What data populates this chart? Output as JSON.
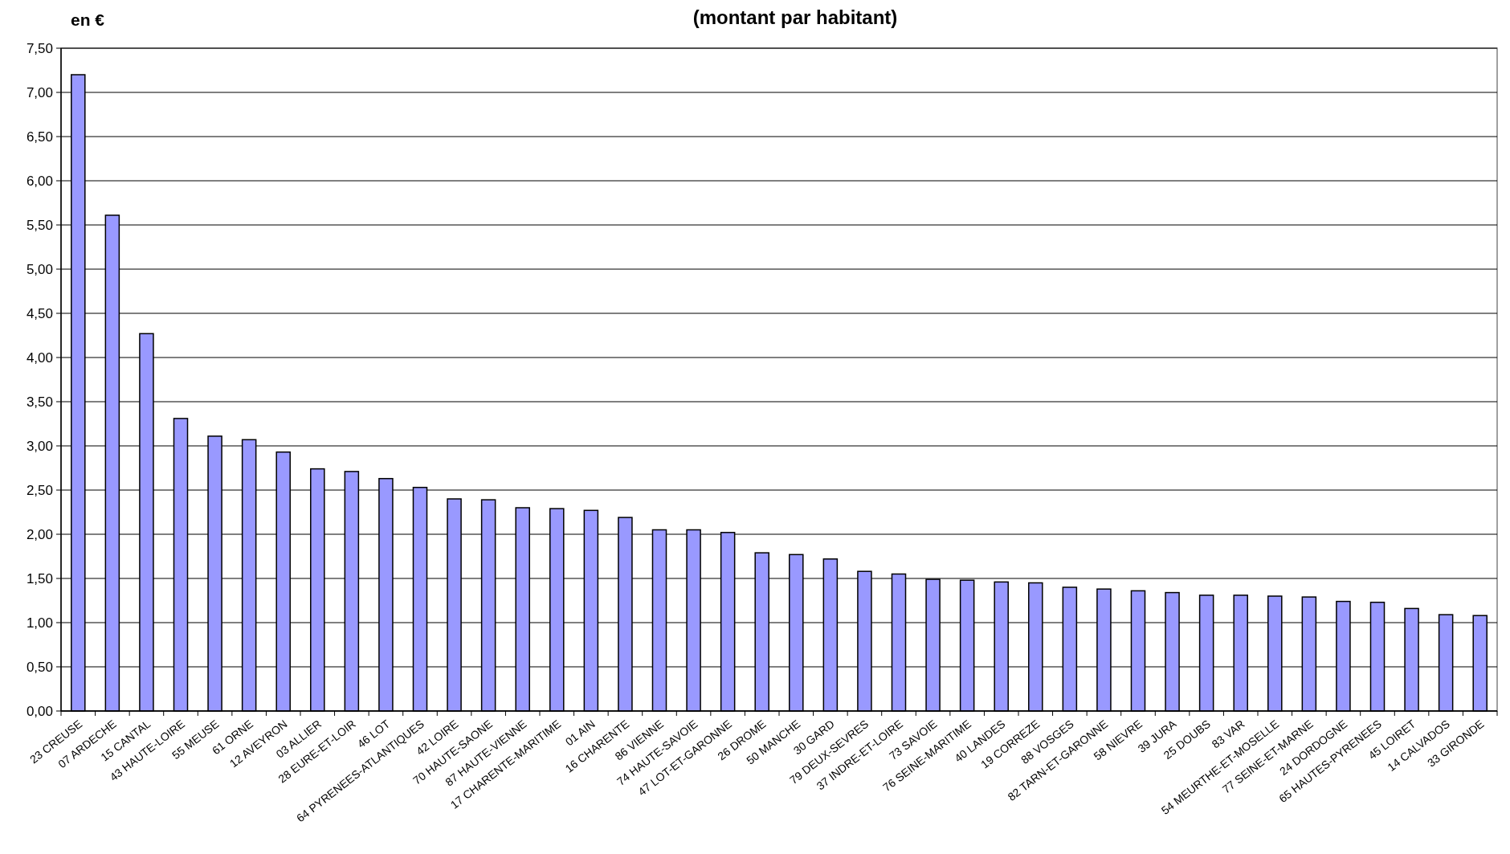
{
  "chart_data": {
    "type": "bar",
    "title": "(montant par habitant)",
    "ylabel": "en €",
    "categories": [
      "23 CREUSE",
      "07 ARDECHE",
      "15 CANTAL",
      "43 HAUTE-LOIRE",
      "55 MEUSE",
      "61 ORNE",
      "12 AVEYRON",
      "03 ALLIER",
      "28 EURE-ET-LOIR",
      "46 LOT",
      "64 PYRENEES-ATLANTIQUES",
      "42 LOIRE",
      "70 HAUTE-SAONE",
      "87 HAUTE-VIENNE",
      "17 CHARENTE-MARITIME",
      "01 AIN",
      "16 CHARENTE",
      "86 VIENNE",
      "74 HAUTE-SAVOIE",
      "47 LOT-ET-GARONNE",
      "26 DROME",
      "50 MANCHE",
      "30 GARD",
      "79 DEUX-SEVRES",
      "37 INDRE-ET-LOIRE",
      "73 SAVOIE",
      "76 SEINE-MARITIME",
      "40 LANDES",
      "19 CORREZE",
      "88 VOSGES",
      "82 TARN-ET-GARONNE",
      "58 NIEVRE",
      "39 JURA",
      "25 DOUBS",
      "83 VAR",
      "54 MEURTHE-ET-MOSELLE",
      "77 SEINE-ET-MARNE",
      "24 DORDOGNE",
      "65 HAUTES-PYRENEES",
      "45 LOIRET",
      "14 CALVADOS",
      "33 GIRONDE"
    ],
    "values": [
      7.2,
      5.61,
      4.27,
      3.31,
      3.11,
      3.07,
      2.93,
      2.74,
      2.71,
      2.63,
      2.53,
      2.4,
      2.39,
      2.3,
      2.29,
      2.27,
      2.19,
      2.05,
      2.05,
      2.02,
      1.79,
      1.77,
      1.72,
      1.58,
      1.55,
      1.49,
      1.48,
      1.46,
      1.45,
      1.4,
      1.38,
      1.36,
      1.34,
      1.31,
      1.31,
      1.3,
      1.29,
      1.24,
      1.23,
      1.16,
      1.09,
      1.08
    ],
    "color": "#9999ff",
    "ylim": [
      0,
      7.5
    ],
    "yticks": [
      {
        "value": 0,
        "label": "0,00"
      },
      {
        "value": 0.5,
        "label": "0,50"
      },
      {
        "value": 1,
        "label": "1,00"
      },
      {
        "value": 1.5,
        "label": "1,50"
      },
      {
        "value": 2,
        "label": "2,00"
      },
      {
        "value": 2.5,
        "label": "2,50"
      },
      {
        "value": 3,
        "label": "3,00"
      },
      {
        "value": 3.5,
        "label": "3,50"
      },
      {
        "value": 4,
        "label": "4,00"
      },
      {
        "value": 4.5,
        "label": "4,50"
      },
      {
        "value": 5,
        "label": "5,00"
      },
      {
        "value": 5.5,
        "label": "5,50"
      },
      {
        "value": 6,
        "label": "6,00"
      },
      {
        "value": 6.5,
        "label": "6,50"
      },
      {
        "value": 7,
        "label": "7,00"
      },
      {
        "value": 7.5,
        "label": "7,50"
      }
    ],
    "grid": "y"
  }
}
